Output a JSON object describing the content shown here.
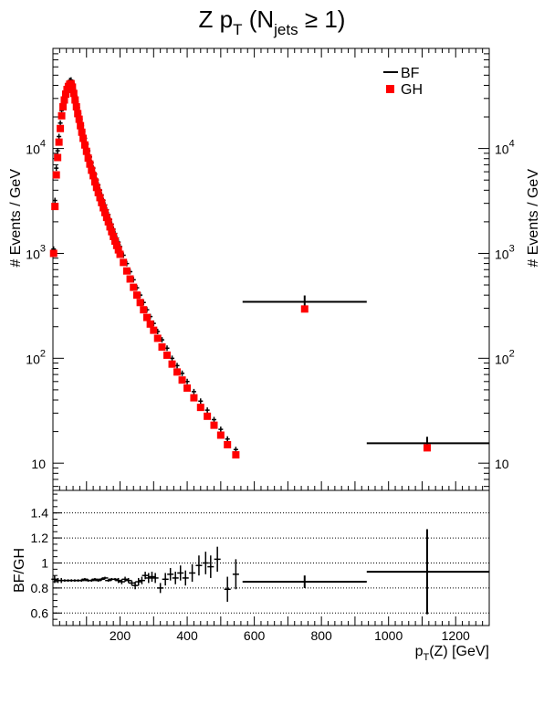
{
  "chart_data": [
    {
      "type": "scatter",
      "title_main": "Z p",
      "title_sub1": "T",
      "title_mid": " (N",
      "title_sub2": "jets",
      "title_end": " ≥ 1)",
      "ylabel_left": "# Events / GeV",
      "ylabel_right": "# Events / GeV",
      "yscale": "log",
      "xlim": [
        0,
        1300
      ],
      "ylim": [
        5.5,
        90000
      ],
      "ytick_labels": {
        "main": [
          "10",
          "10",
          "10",
          "10"
        ],
        "exp": [
          "",
          "2",
          "3",
          "4"
        ],
        "values": [
          10,
          100,
          1000,
          10000
        ]
      },
      "legend": [
        {
          "name": "BF",
          "marker": "line",
          "color": "#000000"
        },
        {
          "name": "GH",
          "marker": "square",
          "color": "#ff0000"
        }
      ],
      "legend_position": "top-right",
      "series": [
        {
          "name": "BF",
          "style": "errorbar",
          "color": "#000000",
          "points": [
            {
              "x": 2,
              "y": 1100
            },
            {
              "x": 6,
              "y": 3200
            },
            {
              "x": 10,
              "y": 6500
            },
            {
              "x": 14,
              "y": 9500
            },
            {
              "x": 18,
              "y": 13000
            },
            {
              "x": 22,
              "y": 17500
            },
            {
              "x": 26,
              "y": 23000
            },
            {
              "x": 30,
              "y": 28000
            },
            {
              "x": 34,
              "y": 32000
            },
            {
              "x": 38,
              "y": 36000
            },
            {
              "x": 42,
              "y": 39500
            },
            {
              "x": 46,
              "y": 42000
            },
            {
              "x": 50,
              "y": 44500
            },
            {
              "x": 54,
              "y": 45000
            },
            {
              "x": 58,
              "y": 42000
            },
            {
              "x": 62,
              "y": 37000
            },
            {
              "x": 66,
              "y": 32000
            },
            {
              "x": 70,
              "y": 28000
            },
            {
              "x": 74,
              "y": 24500
            },
            {
              "x": 78,
              "y": 21500
            },
            {
              "x": 82,
              "y": 19000
            },
            {
              "x": 86,
              "y": 16500
            },
            {
              "x": 90,
              "y": 14500
            },
            {
              "x": 95,
              "y": 12500
            },
            {
              "x": 100,
              "y": 11000
            },
            {
              "x": 105,
              "y": 9500
            },
            {
              "x": 110,
              "y": 8300
            },
            {
              "x": 115,
              "y": 7300
            },
            {
              "x": 120,
              "y": 6500
            },
            {
              "x": 125,
              "y": 5700
            },
            {
              "x": 130,
              "y": 5000
            },
            {
              "x": 135,
              "y": 4500
            },
            {
              "x": 140,
              "y": 4000
            },
            {
              "x": 145,
              "y": 3600
            },
            {
              "x": 150,
              "y": 3200
            },
            {
              "x": 155,
              "y": 2900
            },
            {
              "x": 160,
              "y": 2600
            },
            {
              "x": 165,
              "y": 2350
            },
            {
              "x": 170,
              "y": 2100
            },
            {
              "x": 175,
              "y": 1900
            },
            {
              "x": 180,
              "y": 1700
            },
            {
              "x": 185,
              "y": 1550
            },
            {
              "x": 190,
              "y": 1400
            },
            {
              "x": 195,
              "y": 1280
            },
            {
              "x": 200,
              "y": 1160
            },
            {
              "x": 210,
              "y": 960
            },
            {
              "x": 220,
              "y": 800
            },
            {
              "x": 230,
              "y": 670
            },
            {
              "x": 240,
              "y": 560
            },
            {
              "x": 250,
              "y": 470
            },
            {
              "x": 260,
              "y": 400
            },
            {
              "x": 270,
              "y": 340
            },
            {
              "x": 280,
              "y": 290
            },
            {
              "x": 290,
              "y": 250
            },
            {
              "x": 300,
              "y": 215
            },
            {
              "x": 312,
              "y": 180
            },
            {
              "x": 325,
              "y": 150
            },
            {
              "x": 340,
              "y": 125
            },
            {
              "x": 355,
              "y": 100
            },
            {
              "x": 370,
              "y": 85
            },
            {
              "x": 385,
              "y": 72
            },
            {
              "x": 400,
              "y": 60
            },
            {
              "x": 420,
              "y": 48
            },
            {
              "x": 440,
              "y": 39
            },
            {
              "x": 460,
              "y": 32
            },
            {
              "x": 480,
              "y": 26
            },
            {
              "x": 500,
              "y": 21
            },
            {
              "x": 520,
              "y": 17
            },
            {
              "x": 545,
              "y": 13.5
            },
            {
              "x": 750,
              "y": 345,
              "xerr": [
                565,
                935
              ]
            },
            {
              "x": 1115,
              "y": 15.5,
              "xerr": [
                935,
                1300
              ]
            }
          ]
        },
        {
          "name": "GH",
          "style": "square",
          "color": "#ff0000",
          "points": [
            {
              "x": 2,
              "y": 1000
            },
            {
              "x": 6,
              "y": 2800
            },
            {
              "x": 10,
              "y": 5600
            },
            {
              "x": 14,
              "y": 8200
            },
            {
              "x": 18,
              "y": 11500
            },
            {
              "x": 22,
              "y": 15500
            },
            {
              "x": 26,
              "y": 20500
            },
            {
              "x": 30,
              "y": 25000
            },
            {
              "x": 34,
              "y": 29000
            },
            {
              "x": 38,
              "y": 33000
            },
            {
              "x": 42,
              "y": 36500
            },
            {
              "x": 46,
              "y": 39000
            },
            {
              "x": 50,
              "y": 41000
            },
            {
              "x": 54,
              "y": 41500
            },
            {
              "x": 58,
              "y": 38500
            },
            {
              "x": 62,
              "y": 33500
            },
            {
              "x": 66,
              "y": 29000
            },
            {
              "x": 70,
              "y": 25000
            },
            {
              "x": 74,
              "y": 21500
            },
            {
              "x": 78,
              "y": 19000
            },
            {
              "x": 82,
              "y": 16500
            },
            {
              "x": 86,
              "y": 14300
            },
            {
              "x": 90,
              "y": 12500
            },
            {
              "x": 95,
              "y": 10800
            },
            {
              "x": 100,
              "y": 9400
            },
            {
              "x": 105,
              "y": 8100
            },
            {
              "x": 110,
              "y": 7100
            },
            {
              "x": 115,
              "y": 6200
            },
            {
              "x": 120,
              "y": 5500
            },
            {
              "x": 125,
              "y": 4800
            },
            {
              "x": 130,
              "y": 4250
            },
            {
              "x": 135,
              "y": 3800
            },
            {
              "x": 140,
              "y": 3400
            },
            {
              "x": 145,
              "y": 3050
            },
            {
              "x": 150,
              "y": 2720
            },
            {
              "x": 155,
              "y": 2450
            },
            {
              "x": 160,
              "y": 2200
            },
            {
              "x": 165,
              "y": 2000
            },
            {
              "x": 170,
              "y": 1790
            },
            {
              "x": 175,
              "y": 1610
            },
            {
              "x": 180,
              "y": 1450
            },
            {
              "x": 185,
              "y": 1310
            },
            {
              "x": 190,
              "y": 1190
            },
            {
              "x": 195,
              "y": 1080
            },
            {
              "x": 200,
              "y": 980
            },
            {
              "x": 210,
              "y": 820
            },
            {
              "x": 220,
              "y": 680
            },
            {
              "x": 230,
              "y": 570
            },
            {
              "x": 240,
              "y": 475
            },
            {
              "x": 250,
              "y": 400
            },
            {
              "x": 260,
              "y": 340
            },
            {
              "x": 270,
              "y": 290
            },
            {
              "x": 280,
              "y": 245
            },
            {
              "x": 290,
              "y": 212
            },
            {
              "x": 300,
              "y": 185
            },
            {
              "x": 312,
              "y": 155
            },
            {
              "x": 325,
              "y": 128
            },
            {
              "x": 340,
              "y": 107
            },
            {
              "x": 355,
              "y": 88
            },
            {
              "x": 370,
              "y": 74
            },
            {
              "x": 385,
              "y": 62
            },
            {
              "x": 400,
              "y": 52
            },
            {
              "x": 420,
              "y": 42
            },
            {
              "x": 440,
              "y": 34
            },
            {
              "x": 460,
              "y": 28
            },
            {
              "x": 480,
              "y": 23
            },
            {
              "x": 500,
              "y": 18.5
            },
            {
              "x": 520,
              "y": 15
            },
            {
              "x": 545,
              "y": 12
            },
            {
              "x": 750,
              "y": 295
            },
            {
              "x": 1115,
              "y": 14
            }
          ]
        }
      ]
    },
    {
      "type": "scatter",
      "ylabel": "BF/GH",
      "xlabel_main": "p",
      "xlabel_sub": "T",
      "xlabel_end": "(Z) [GeV]",
      "xlim": [
        0,
        1300
      ],
      "ylim": [
        0.5,
        1.58
      ],
      "xticks": [
        200,
        400,
        600,
        800,
        1000,
        1200
      ],
      "xtick_labels": [
        "200",
        "400",
        "600",
        "800",
        "1000",
        "1200"
      ],
      "yticks": [
        0.6,
        0.8,
        1.0,
        1.2,
        1.4
      ],
      "ytick_labels": [
        "0.6",
        "0.8",
        "1",
        "1.2",
        "1.4"
      ],
      "reference_lines": [
        0.6,
        0.8,
        1.0,
        1.2,
        1.4
      ],
      "grid": "dotted-horizontal",
      "series": [
        {
          "name": "BF/GH",
          "style": "errorbar",
          "color": "#000000",
          "points": [
            {
              "x": 5,
              "y": 0.87,
              "yerr": 0.03
            },
            {
              "x": 15,
              "y": 0.86,
              "yerr": 0.02
            },
            {
              "x": 25,
              "y": 0.86,
              "yerr": 0.02
            },
            {
              "x": 35,
              "y": 0.86,
              "yerr": 0.01
            },
            {
              "x": 45,
              "y": 0.86,
              "yerr": 0.01
            },
            {
              "x": 55,
              "y": 0.86,
              "yerr": 0.01
            },
            {
              "x": 65,
              "y": 0.86,
              "yerr": 0.01
            },
            {
              "x": 75,
              "y": 0.86,
              "yerr": 0.01
            },
            {
              "x": 85,
              "y": 0.86,
              "yerr": 0.01
            },
            {
              "x": 95,
              "y": 0.87,
              "yerr": 0.01
            },
            {
              "x": 105,
              "y": 0.86,
              "yerr": 0.01
            },
            {
              "x": 115,
              "y": 0.86,
              "yerr": 0.01
            },
            {
              "x": 125,
              "y": 0.87,
              "yerr": 0.01
            },
            {
              "x": 135,
              "y": 0.86,
              "yerr": 0.01
            },
            {
              "x": 145,
              "y": 0.87,
              "yerr": 0.01
            },
            {
              "x": 155,
              "y": 0.88,
              "yerr": 0.01
            },
            {
              "x": 165,
              "y": 0.86,
              "yerr": 0.01
            },
            {
              "x": 175,
              "y": 0.87,
              "yerr": 0.01
            },
            {
              "x": 185,
              "y": 0.87,
              "yerr": 0.01
            },
            {
              "x": 195,
              "y": 0.86,
              "yerr": 0.02
            },
            {
              "x": 205,
              "y": 0.85,
              "yerr": 0.02
            },
            {
              "x": 215,
              "y": 0.87,
              "yerr": 0.02
            },
            {
              "x": 225,
              "y": 0.86,
              "yerr": 0.02
            },
            {
              "x": 235,
              "y": 0.84,
              "yerr": 0.02
            },
            {
              "x": 245,
              "y": 0.82,
              "yerr": 0.03
            },
            {
              "x": 255,
              "y": 0.85,
              "yerr": 0.03
            },
            {
              "x": 265,
              "y": 0.86,
              "yerr": 0.03
            },
            {
              "x": 275,
              "y": 0.9,
              "yerr": 0.03
            },
            {
              "x": 285,
              "y": 0.88,
              "yerr": 0.04
            },
            {
              "x": 295,
              "y": 0.89,
              "yerr": 0.04
            },
            {
              "x": 305,
              "y": 0.88,
              "yerr": 0.04
            },
            {
              "x": 320,
              "y": 0.8,
              "yerr": 0.04
            },
            {
              "x": 335,
              "y": 0.87,
              "yerr": 0.05
            },
            {
              "x": 350,
              "y": 0.91,
              "yerr": 0.05
            },
            {
              "x": 365,
              "y": 0.88,
              "yerr": 0.05
            },
            {
              "x": 380,
              "y": 0.92,
              "yerr": 0.06
            },
            {
              "x": 395,
              "y": 0.88,
              "yerr": 0.06
            },
            {
              "x": 415,
              "y": 0.92,
              "yerr": 0.07
            },
            {
              "x": 435,
              "y": 0.98,
              "yerr": 0.08
            },
            {
              "x": 455,
              "y": 1.0,
              "yerr": 0.09
            },
            {
              "x": 470,
              "y": 0.97,
              "yerr": 0.09
            },
            {
              "x": 490,
              "y": 1.03,
              "yerr": 0.1
            },
            {
              "x": 520,
              "y": 0.79,
              "yerr": 0.1
            },
            {
              "x": 545,
              "y": 0.91,
              "yerr": 0.12
            },
            {
              "x": 750,
              "y": 0.85,
              "yerr": 0.05,
              "xerr": [
                565,
                935
              ]
            },
            {
              "x": 1115,
              "y": 0.93,
              "yerr": 0.34,
              "xerr": [
                935,
                1300
              ]
            }
          ]
        }
      ]
    }
  ]
}
